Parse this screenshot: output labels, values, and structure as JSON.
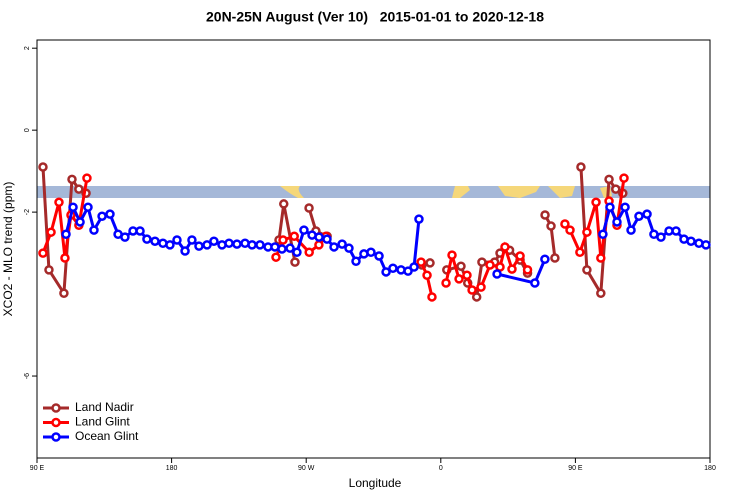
{
  "chart_data": {
    "type": "line",
    "title": "20N-25N August (Ver 10)   2015-01-01 to 2020-12-18",
    "x_label": "Longitude",
    "y_label": "XCO2 - MLO trend (ppm)",
    "xlim": [
      90,
      540
    ],
    "ylim": [
      -8,
      2.2
    ],
    "xticks": [
      {
        "value": 90,
        "label": "90 E"
      },
      180,
      {
        "value": 270,
        "label": "90 W"
      },
      {
        "value": 360,
        "label": "0"
      },
      {
        "value": 450,
        "label": "90 E"
      },
      {
        "value": 540,
        "label": "180"
      }
    ],
    "yticks": [
      -6,
      -2,
      0,
      2
    ],
    "legend": "bottomleft",
    "series": [
      {
        "name": "Land Nadir",
        "color": "#a52a2a",
        "x": [
          94,
          98,
          108,
          113.4,
          118,
          122.8,
          null,
          251.8,
          255,
          262.5,
          null,
          271.9,
          276.5,
          284,
          null,
          347.4,
          352.8,
          null,
          364,
          373.5,
          378,
          384,
          387.5,
          396,
          399.6,
          406,
          413,
          418,
          null,
          429.7,
          433.7,
          436.3,
          null,
          453.7,
          457.7,
          467,
          472.5,
          477,
          481.7
        ],
        "values": [
          -0.9,
          -3.41,
          -3.98,
          -1.2,
          -1.44,
          -1.54,
          null,
          -2.68,
          -1.8,
          -3.22,
          null,
          -1.9,
          -2.46,
          -2.59,
          null,
          -3.29,
          -3.24,
          null,
          -3.41,
          -3.32,
          -3.73,
          -4.07,
          -3.22,
          -3.22,
          -3.0,
          -2.93,
          -3.17,
          -3.49,
          null,
          -2.07,
          -2.34,
          -3.12,
          null,
          -0.9,
          -3.41,
          -3.98,
          -1.2,
          -1.44,
          -1.54
        ]
      },
      {
        "name": "Land Glint",
        "color": "#ff0000",
        "x": [
          94,
          99.4,
          104.7,
          108.7,
          112.7,
          118,
          123.4,
          null,
          249.8,
          254.5,
          262,
          272,
          278.5,
          283.2,
          null,
          346.8,
          350.8,
          354.1,
          null,
          363.5,
          367.5,
          372.2,
          377.5,
          380.9,
          386.9,
          392.9,
          399.6,
          402.9,
          407.6,
          413,
          418,
          null,
          443,
          446.4,
          453,
          457.7,
          463.8,
          467,
          472.5,
          477.8,
          482.5
        ],
        "values": [
          -3.0,
          -2.49,
          -1.76,
          -3.12,
          -2.07,
          -2.32,
          -1.17,
          null,
          -3.1,
          -2.68,
          -2.59,
          -2.98,
          -2.8,
          -2.59,
          null,
          -3.22,
          -3.54,
          -4.07,
          null,
          -3.73,
          -3.05,
          -3.63,
          -3.54,
          -3.9,
          -3.83,
          -3.29,
          -3.34,
          -2.85,
          -3.39,
          -3.07,
          -3.41,
          null,
          -2.29,
          -2.44,
          -2.98,
          -2.49,
          -1.76,
          -3.12,
          -1.73,
          -2.32,
          -1.17
        ]
      },
      {
        "name": "Ocean Glint",
        "color": "#0000ff",
        "x": [
          109.4,
          114.1,
          118.8,
          124.1,
          128.1,
          133.5,
          138.8,
          144.2,
          148.8,
          154.2,
          158.9,
          163.5,
          168.9,
          174.2,
          178.9,
          183.6,
          189,
          193.6,
          198.3,
          203.7,
          208.3,
          213.7,
          218.4,
          223.7,
          229.1,
          233.8,
          239.1,
          244.5,
          249.1,
          253.8,
          259.2,
          263.8,
          268.5,
          273.9,
          278.6,
          283.9,
          288.6,
          294,
          298.6,
          303.3,
          308.6,
          313.3,
          318.7,
          323.4,
          328,
          333.4,
          338.1,
          342.1,
          345.4,
          null,
          397.6,
          422.9,
          429.6,
          null,
          468.4,
          473.1,
          477.8,
          483.2,
          487.2,
          492.5,
          497.9,
          502.5,
          507.2,
          512.6,
          517.3,
          522.6,
          527.3,
          532.6,
          537.3
        ],
        "values": [
          -2.54,
          -1.88,
          -2.24,
          -1.88,
          -2.44,
          -2.1,
          -2.05,
          -2.54,
          -2.61,
          -2.46,
          -2.46,
          -2.66,
          -2.71,
          -2.76,
          -2.8,
          -2.68,
          -2.95,
          -2.68,
          -2.83,
          -2.8,
          -2.71,
          -2.8,
          -2.76,
          -2.78,
          -2.76,
          -2.8,
          -2.8,
          -2.85,
          -2.85,
          -2.9,
          -2.88,
          -2.98,
          -2.44,
          -2.56,
          -2.61,
          -2.66,
          -2.85,
          -2.78,
          -2.88,
          -3.2,
          -3.02,
          -2.98,
          -3.07,
          -3.46,
          -3.37,
          -3.41,
          -3.44,
          -3.34,
          -2.17,
          null,
          -3.51,
          -3.73,
          -3.15,
          null,
          -2.54,
          -1.88,
          -2.24,
          -1.88,
          -2.44,
          -2.1,
          -2.05,
          -2.54,
          -2.61,
          -2.46,
          -2.46,
          -2.66,
          -2.71,
          -2.76,
          -2.8
        ]
      }
    ]
  }
}
